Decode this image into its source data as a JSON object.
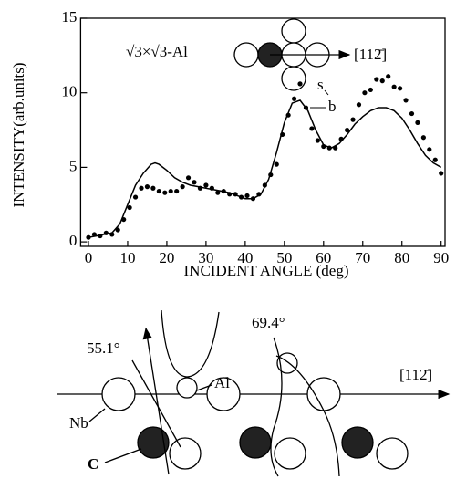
{
  "chart_data": {
    "type": "scatter",
    "title": "√3×√3-Al",
    "direction_label": "[112̄]",
    "xlabel": "INCIDENT ANGLE (deg)",
    "ylabel": "INTENSITY(arb.units)",
    "xlim": [
      -2,
      91
    ],
    "ylim": [
      -0.3,
      15
    ],
    "xticks": [
      0,
      10,
      20,
      30,
      40,
      50,
      60,
      70,
      80,
      90
    ],
    "yticks": [
      0,
      5,
      10,
      15
    ],
    "series": [
      {
        "name": "s",
        "type": "scatter",
        "color": "#000000",
        "x": [
          0,
          1.5,
          3,
          4.5,
          6,
          7.5,
          9,
          10.5,
          12,
          13.5,
          15,
          16.5,
          18,
          19.5,
          21,
          22.5,
          24,
          25.5,
          27,
          28.5,
          30,
          31.5,
          33,
          34.5,
          36,
          37.5,
          39,
          40.5,
          42,
          43.5,
          45,
          46.5,
          48,
          49.5,
          51,
          52.5,
          54,
          55.5,
          57,
          58.5,
          60,
          61.5,
          63,
          64.5,
          66,
          67.5,
          69,
          70.5,
          72,
          73.5,
          75,
          76.5,
          78,
          79.5,
          81,
          82.5,
          84,
          85.5,
          87,
          88.5,
          90
        ],
        "values": [
          0.3,
          0.5,
          0.4,
          0.6,
          0.5,
          0.8,
          1.5,
          2.3,
          3.0,
          3.6,
          3.7,
          3.6,
          3.4,
          3.3,
          3.4,
          3.4,
          3.7,
          4.3,
          4.0,
          3.6,
          3.8,
          3.6,
          3.3,
          3.4,
          3.2,
          3.2,
          3.0,
          3.1,
          2.9,
          3.2,
          3.8,
          4.5,
          5.2,
          7.2,
          8.5,
          9.6,
          10.6,
          9.0,
          7.6,
          6.8,
          6.4,
          6.3,
          6.3,
          6.9,
          7.5,
          8.2,
          9.2,
          10.0,
          10.2,
          10.9,
          10.8,
          11.1,
          10.4,
          10.3,
          9.5,
          8.6,
          8.0,
          7.0,
          6.2,
          5.5,
          4.6
        ]
      },
      {
        "name": "b",
        "type": "line",
        "color": "#000000",
        "x": [
          0,
          2,
          4,
          6,
          8,
          10,
          12,
          14,
          16,
          17,
          18,
          20,
          22,
          24,
          26,
          28,
          30,
          32,
          34,
          36,
          38,
          40,
          42,
          44,
          46,
          48,
          50,
          52,
          54,
          56,
          58,
          60,
          62,
          64,
          66,
          68,
          70,
          72,
          74,
          76,
          78,
          80,
          82,
          84,
          86,
          88,
          90
        ],
        "values": [
          0.3,
          0.4,
          0.5,
          0.6,
          1.2,
          2.5,
          3.8,
          4.6,
          5.2,
          5.3,
          5.2,
          4.8,
          4.3,
          4.0,
          3.8,
          3.7,
          3.6,
          3.5,
          3.4,
          3.3,
          3.1,
          2.9,
          2.9,
          3.2,
          4.2,
          6.0,
          8.0,
          9.3,
          9.5,
          8.8,
          7.5,
          6.5,
          6.3,
          6.6,
          7.2,
          7.9,
          8.4,
          8.8,
          9.0,
          9.0,
          8.8,
          8.3,
          7.5,
          6.6,
          5.8,
          5.3,
          5.0
        ]
      }
    ]
  },
  "diagram": {
    "angle_1": "55.1°",
    "angle_2": "69.4°",
    "adsorbate": "Al",
    "substrate": "Nb",
    "carbon": "C",
    "direction": "[112̄]"
  }
}
